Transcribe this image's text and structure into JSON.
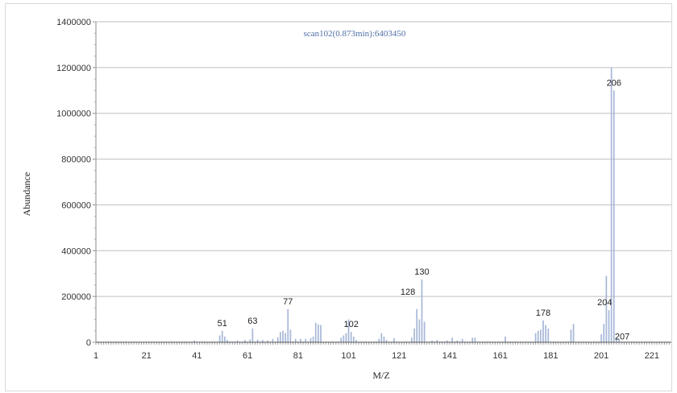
{
  "chart_data": {
    "type": "bar",
    "title": "scan102(0.873min):6403450",
    "xlabel": "M/Z",
    "ylabel": "Abundance",
    "xlim": [
      1,
      230
    ],
    "ylim": [
      0,
      1400000
    ],
    "yticks": [
      "0",
      "200000",
      "400000",
      "600000",
      "800000",
      "1000000",
      "1200000",
      "1400000"
    ],
    "xticks": [
      "1",
      "21",
      "41",
      "61",
      "81",
      "101",
      "121",
      "141",
      "161",
      "181",
      "201",
      "221"
    ],
    "grid": "horizontal",
    "legend": "none",
    "color": "#a8b8d8",
    "x": [
      40,
      50,
      51,
      52,
      53,
      57,
      60,
      62,
      63,
      65,
      67,
      69,
      71,
      73,
      74,
      75,
      76,
      77,
      78,
      80,
      82,
      84,
      86,
      87,
      88,
      89,
      90,
      98,
      99,
      100,
      101,
      102,
      103,
      104,
      113,
      114,
      115,
      116,
      119,
      126,
      127,
      128,
      129,
      130,
      131,
      134,
      136,
      140,
      142,
      144,
      146,
      150,
      151,
      163,
      175,
      176,
      177,
      178,
      179,
      180,
      189,
      190,
      201,
      202,
      203,
      204,
      205,
      206,
      207,
      208
    ],
    "y": [
      8000,
      30000,
      50000,
      25000,
      10000,
      8000,
      10000,
      12000,
      60000,
      12000,
      10000,
      8000,
      15000,
      22000,
      45000,
      50000,
      40000,
      145000,
      55000,
      15000,
      15000,
      15000,
      18000,
      25000,
      85000,
      78000,
      75000,
      20000,
      30000,
      40000,
      100000,
      45000,
      25000,
      10000,
      15000,
      40000,
      25000,
      10000,
      18000,
      20000,
      60000,
      145000,
      100000,
      275000,
      90000,
      8000,
      10000,
      8000,
      20000,
      8000,
      15000,
      20000,
      20000,
      25000,
      40000,
      50000,
      55000,
      95000,
      75000,
      60000,
      55000,
      80000,
      35000,
      80000,
      290000,
      140000,
      1200000,
      1100000,
      20000,
      12000
    ],
    "labels": [
      {
        "x": 51,
        "text": "51"
      },
      {
        "x": 63,
        "text": "63"
      },
      {
        "x": 77,
        "text": "77"
      },
      {
        "x": 102,
        "text": "102"
      },
      {
        "x": 128,
        "text": "128"
      },
      {
        "x": 130,
        "text": "130"
      },
      {
        "x": 178,
        "text": "178"
      },
      {
        "x": 204,
        "text": "204"
      },
      {
        "x": 206,
        "text": "206"
      },
      {
        "x": 207,
        "text": "207"
      }
    ]
  }
}
